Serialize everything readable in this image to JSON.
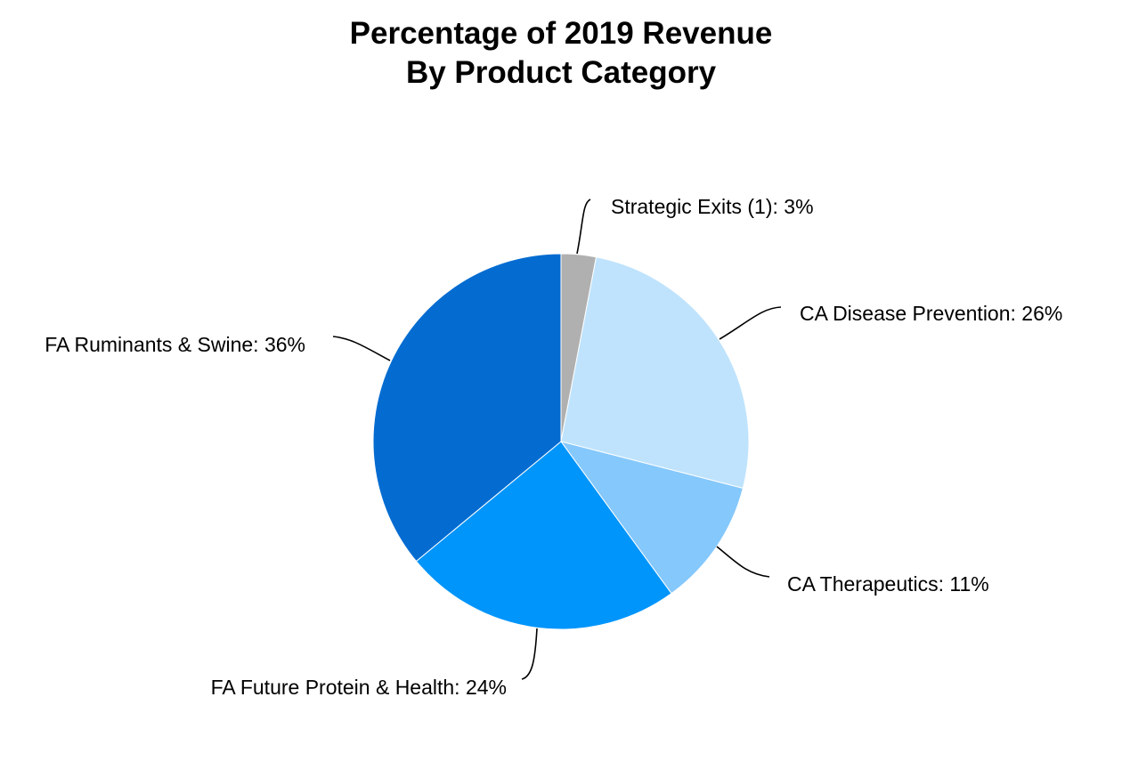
{
  "chart_data": {
    "type": "pie",
    "title": [
      "Percentage of 2019 Revenue",
      "By Product Category"
    ],
    "slices": [
      {
        "name": "Strategic Exits (1)",
        "value": 3,
        "label": "Strategic Exits (1): 3%",
        "color": "#b0b0b0"
      },
      {
        "name": "CA Disease Prevention",
        "value": 26,
        "label": "CA Disease Prevention: 26%",
        "color": "#bfe3fd"
      },
      {
        "name": "CA Therapeutics",
        "value": 11,
        "label": "CA Therapeutics: 11%",
        "color": "#85c8fc"
      },
      {
        "name": "FA Future Protein & Health",
        "value": 24,
        "label": "FA Future Protein & Health: 24%",
        "color": "#0095fb"
      },
      {
        "name": "FA Ruminants & Swine",
        "value": 36,
        "label": "FA Ruminants & Swine: 36%",
        "color": "#046cd1"
      }
    ],
    "start_angle": "12 o'clock",
    "direction": "clockwise",
    "legend": "none"
  }
}
